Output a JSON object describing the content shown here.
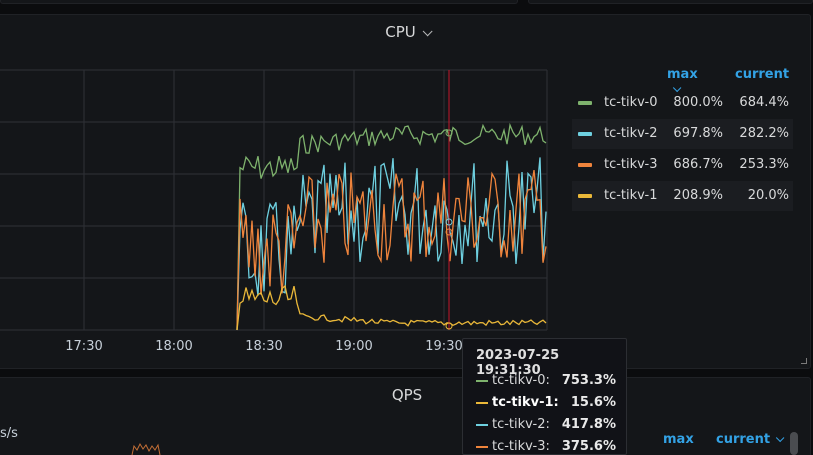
{
  "cpu_panel": {
    "title": "CPU",
    "legend": {
      "col_max": "max",
      "col_current": "current",
      "items": [
        {
          "name": "tc-tikv-0",
          "max": "800.0%",
          "current": "684.4%",
          "color": "#7eb26d"
        },
        {
          "name": "tc-tikv-2",
          "max": "697.8%",
          "current": "282.2%",
          "color": "#6ed0e0"
        },
        {
          "name": "tc-tikv-3",
          "max": "686.7%",
          "current": "253.3%",
          "color": "#ef843c"
        },
        {
          "name": "tc-tikv-1",
          "max": "208.9%",
          "current": "20.0%",
          "color": "#eab839"
        }
      ]
    },
    "chart_data": {
      "type": "line",
      "x_ticks": [
        "17:30",
        "18:00",
        "18:30",
        "19:00",
        "19:30"
      ],
      "cursor_time": "19:31:30",
      "series": [
        {
          "name": "tc-tikv-0",
          "color": "#7eb26d"
        },
        {
          "name": "tc-tikv-2",
          "color": "#6ed0e0"
        },
        {
          "name": "tc-tikv-3",
          "color": "#ef843c"
        },
        {
          "name": "tc-tikv-1",
          "color": "#eab839"
        }
      ],
      "grid": true
    }
  },
  "tooltip": {
    "time": "2023-07-25 19:31:30",
    "rows": [
      {
        "name": "tc-tikv-0:",
        "value": "753.3%",
        "color": "#7eb26d",
        "highlight": false
      },
      {
        "name": "tc-tikv-1:",
        "value": "15.6%",
        "color": "#eab839",
        "highlight": true
      },
      {
        "name": "tc-tikv-2:",
        "value": "417.8%",
        "color": "#6ed0e0",
        "highlight": false
      },
      {
        "name": "tc-tikv-3:",
        "value": "375.6%",
        "color": "#ef843c",
        "highlight": false
      }
    ]
  },
  "qps_panel": {
    "title": "QPS",
    "y_unit_fragment": "s/s",
    "legend": {
      "col_max": "max",
      "col_current": "current"
    }
  }
}
